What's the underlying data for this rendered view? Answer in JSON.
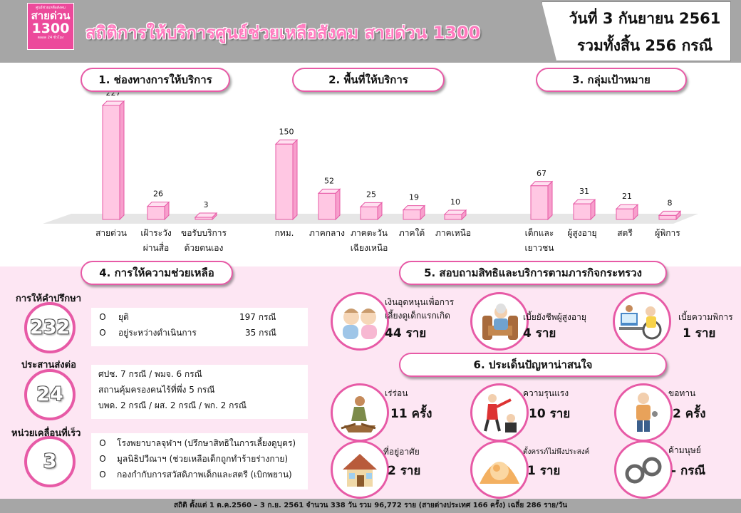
{
  "header": {
    "logo": {
      "line1": "ศูนย์ช่วยเหลือสังคม",
      "line2": "สายด่วน",
      "line3": "1300",
      "line4": "ตลอด 24 ชั่วโมง"
    },
    "title": "สถิติการให้บริการศูนย์ช่วยเหลือสังคม สายด่วน 1300",
    "date": "วันที่ 3 กันยายน 2561",
    "total": "รวมทั้งสิ้น 256 กรณี"
  },
  "sections": {
    "s1": "1. ช่องทางการให้บริการ",
    "s2": "2. พื้นที่ให้บริการ",
    "s3": "3. กลุ่มเป้าหมาย",
    "s4": "4. การให้ความช่วยเหลือ",
    "s5": "5. สอบถามสิทธิและบริการตามภารกิจกระทรวง",
    "s6": "6. ประเด็นปัญหาน่าสนใจ"
  },
  "colors": {
    "bar_face": "#ffc7e3",
    "bar_edge": "#e75aa6",
    "accent": "#e75aa6",
    "panel": "#fde6f3",
    "header": "#a6a6a6"
  },
  "chart_data": [
    {
      "type": "bar",
      "categories": [
        "สายด่วน",
        "เฝ้าระวัง ผ่านสื่อ",
        "ขอรับบริการ ด้วยตนเอง"
      ],
      "values": [
        227,
        26,
        3
      ]
    },
    {
      "type": "bar",
      "categories": [
        "กทม.",
        "ภาคกลาง",
        "ภาคตะวัน เฉียงเหนือ",
        "ภาคใต้",
        "ภาคเหนือ"
      ],
      "values": [
        150,
        52,
        25,
        19,
        10
      ]
    },
    {
      "type": "bar",
      "categories": [
        "เด็กและ เยาวชน",
        "ผู้สูงอายุ",
        "สตรี",
        "ผู้พิการ"
      ],
      "values": [
        67,
        31,
        21,
        8
      ]
    }
  ],
  "assist": {
    "consult": {
      "label": "การให้คำปรึกษา",
      "value": "232",
      "items": [
        {
          "bullet": "O",
          "text": "ยุติ",
          "count": "197 กรณี"
        },
        {
          "bullet": "O",
          "text": "อยู่ระหว่างดำเนินการ",
          "count": "35 กรณี"
        }
      ]
    },
    "refer": {
      "label": "ประสานส่งต่อ",
      "value": "24",
      "lines": [
        "ศปช.  7 กรณี / พมจ.  6 กรณี",
        "สถานคุ้มครองคนไร้ที่พึ่ง  5 กรณี",
        "บพด.  2 กรณี / ผส.    2 กรณี / พก.    2 กรณี"
      ]
    },
    "mobile": {
      "label": "หน่วยเคลื่อนที่เร็ว",
      "value": "3",
      "items": [
        {
          "bullet": "O",
          "text": "โรงพยาบาลจุฬาฯ (ปรึกษาสิทธิในการเลี้ยงดูบุตร)"
        },
        {
          "bullet": "O",
          "text": "มูลนิธิปวีณาฯ (ช่วยเหลือเด็กถูกทำร้ายร่างกาย)"
        },
        {
          "bullet": "O",
          "text": "กองกำกับการสวัสดิภาพเด็กและสตรี (เบิกพยาน)"
        }
      ]
    }
  },
  "rights": [
    {
      "icon": "babies-icon",
      "label": "เงินอุดหนุนเพื่อการ เลี้ยงดูเด็กแรกเกิด",
      "value": "44 ราย"
    },
    {
      "icon": "elderly-icon",
      "label": "เบี้ยยังชีพผู้สูงอายุ",
      "value": "4 ราย"
    },
    {
      "icon": "disabled-icon",
      "label": "เบี้ยความพิการ",
      "value": "1 ราย"
    }
  ],
  "issues": [
    {
      "icon": "homeless-icon",
      "label": "เร่ร่อน",
      "value": "11 ครั้ง"
    },
    {
      "icon": "violence-icon",
      "label": "ความรุนแรง",
      "value": "10 ราย"
    },
    {
      "icon": "beggar-icon",
      "label": "ขอทาน",
      "value": "2 ครั้ง"
    },
    {
      "icon": "house-icon",
      "label": "ที่อยู่อาศัย",
      "value": "2 ราย"
    },
    {
      "icon": "fetus-icon",
      "label": "ตั้งครรภ์ไม่พึงประสงค์",
      "value": "1 ราย"
    },
    {
      "icon": "handcuffs-icon",
      "label": "ค้ามนุษย์",
      "value": "- กรณี"
    }
  ],
  "footer": "สถิติ ตั้งแต่ 1 ต.ค.2560 – 3 ก.ย. 2561 จำนวน 338 วัน รวม 96,772 ราย (สายต่างประเทศ 166 ครั้ง) เฉลี่ย 286 ราย/วัน"
}
